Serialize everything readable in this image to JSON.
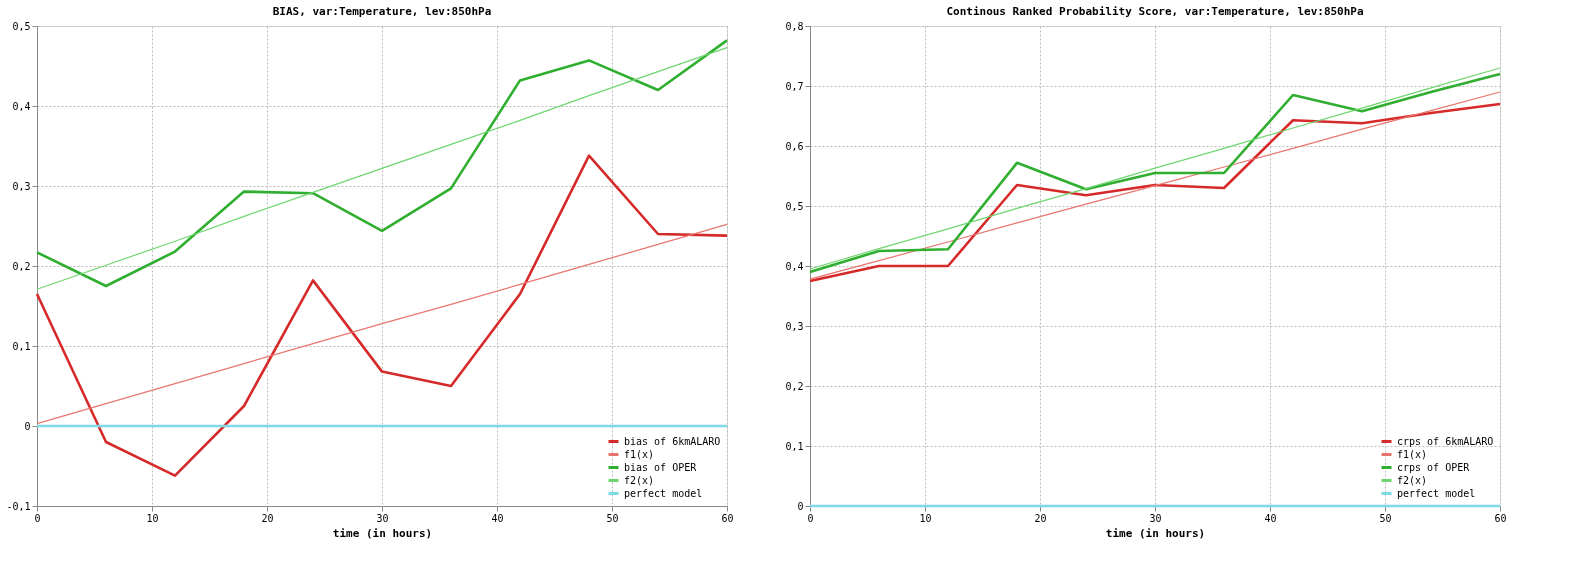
{
  "chart_data": [
    {
      "type": "line",
      "title": "BIAS, var:Temperature, lev:850hPa",
      "xlabel": "time (in hours)",
      "x": [
        0,
        6,
        12,
        18,
        24,
        30,
        36,
        42,
        48,
        54,
        60
      ],
      "series": [
        {
          "name": "bias of 6kmALARO",
          "color": "#d62a2a",
          "values": [
            0.165,
            -0.02,
            -0.062,
            0.025,
            0.182,
            0.068,
            0.05,
            0.165,
            0.338,
            0.24,
            0.238
          ]
        },
        {
          "name": "f1(x)",
          "color": "#e8756f",
          "values": [
            0.003,
            0.028,
            0.053,
            0.078,
            0.103,
            0.128,
            0.152,
            0.177,
            0.202,
            0.227,
            0.252
          ]
        },
        {
          "name": "bias of OPER",
          "color": "#2fae2f",
          "values": [
            0.217,
            0.175,
            0.218,
            0.293,
            0.291,
            0.244,
            0.297,
            0.432,
            0.457,
            0.42,
            0.482
          ]
        },
        {
          "name": "f2(x)",
          "color": "#6fd66f",
          "values": [
            0.171,
            0.201,
            0.231,
            0.262,
            0.292,
            0.322,
            0.352,
            0.382,
            0.413,
            0.443,
            0.473
          ]
        },
        {
          "name": "perfect model",
          "color": "#7fd8e6",
          "values": [
            0,
            0,
            0,
            0,
            0,
            0,
            0,
            0,
            0,
            0,
            0
          ]
        }
      ],
      "xlim": [
        0,
        60
      ],
      "xticks": [
        0,
        10,
        20,
        30,
        40,
        50,
        60
      ],
      "ylim": [
        -0.1,
        0.5
      ],
      "yticks": [
        {
          "value": -0.1,
          "label": "-0,1"
        },
        {
          "value": 0,
          "label": "0"
        },
        {
          "value": 0.1,
          "label": "0,1"
        },
        {
          "value": 0.2,
          "label": "0,2"
        },
        {
          "value": 0.3,
          "label": "0,3"
        },
        {
          "value": 0.4,
          "label": "0,4"
        },
        {
          "value": 0.5,
          "label": "0,5"
        }
      ],
      "grid": true,
      "legend": "bottom right",
      "marker": "none",
      "line_style": "solid"
    },
    {
      "type": "line",
      "title": "Continous Ranked Probability Score, var:Temperature, lev:850hPa",
      "xlabel": "time (in hours)",
      "x": [
        0,
        6,
        12,
        18,
        24,
        30,
        36,
        42,
        48,
        54,
        60
      ],
      "series": [
        {
          "name": "crps of 6kmALARO",
          "color": "#d62a2a",
          "values": [
            0.375,
            0.4,
            0.4,
            0.535,
            0.518,
            0.535,
            0.53,
            0.643,
            0.638,
            0.655,
            0.67
          ]
        },
        {
          "name": "f1(x)",
          "color": "#e8756f",
          "values": [
            0.378,
            0.409,
            0.44,
            0.472,
            0.503,
            0.534,
            0.565,
            0.596,
            0.628,
            0.659,
            0.69
          ]
        },
        {
          "name": "crps of OPER",
          "color": "#2fae2f",
          "values": [
            0.39,
            0.425,
            0.428,
            0.572,
            0.528,
            0.555,
            0.555,
            0.685,
            0.658,
            0.69,
            0.72
          ]
        },
        {
          "name": "f2(x)",
          "color": "#6fd66f",
          "values": [
            0.395,
            0.429,
            0.462,
            0.496,
            0.529,
            0.563,
            0.596,
            0.63,
            0.663,
            0.697,
            0.73
          ]
        },
        {
          "name": "perfect model",
          "color": "#7fd8e6",
          "values": [
            0,
            0,
            0,
            0,
            0,
            0,
            0,
            0,
            0,
            0,
            0
          ]
        }
      ],
      "xlim": [
        0,
        60
      ],
      "xticks": [
        0,
        10,
        20,
        30,
        40,
        50,
        60
      ],
      "ylim": [
        0,
        0.8
      ],
      "yticks": [
        {
          "value": 0,
          "label": "0"
        },
        {
          "value": 0.1,
          "label": "0,1"
        },
        {
          "value": 0.2,
          "label": "0,2"
        },
        {
          "value": 0.3,
          "label": "0,3"
        },
        {
          "value": 0.4,
          "label": "0,4"
        },
        {
          "value": 0.5,
          "label": "0,5"
        },
        {
          "value": 0.6,
          "label": "0,6"
        },
        {
          "value": 0.7,
          "label": "0,7"
        },
        {
          "value": 0.8,
          "label": "0,8"
        }
      ],
      "grid": true,
      "legend": "bottom right",
      "marker": "none",
      "line_style": "solid"
    }
  ]
}
